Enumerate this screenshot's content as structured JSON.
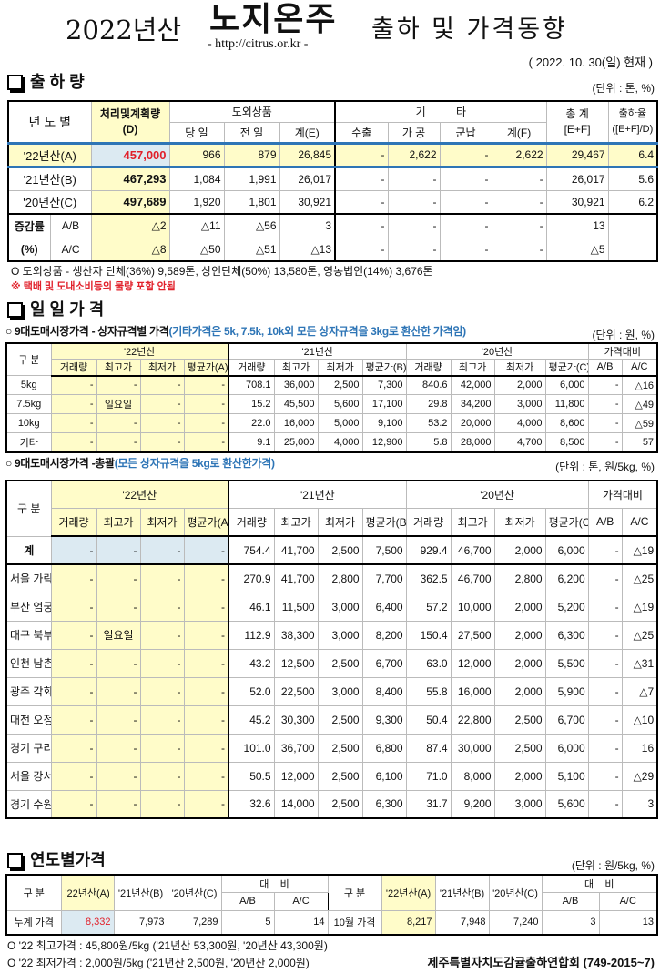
{
  "header": {
    "year": "2022년산",
    "brand": "노지온주",
    "url": "- http://citrus.or.kr -",
    "subtitle": "출하 및 가격동향",
    "date": "( 2022. 10. 30(일) 현재 )"
  },
  "colors": {
    "highlight_yellow": "#fffcc9",
    "highlight_blue": "#dceaf2",
    "red": "#e1202a",
    "divider_blue": "#2e75b6"
  },
  "shipment": {
    "title": "출 하 량",
    "unit": "(단위 : 톤, %)",
    "headers": {
      "year": "년 도 별",
      "plan": "처리및계획량",
      "plan_sub": "(D)",
      "outside": "도외상품",
      "today": "당 일",
      "prev": "전 일",
      "sum_e": "계(E)",
      "other": "기          타",
      "export": "수출",
      "process": "가 공",
      "military": "군납",
      "sum_f": "계(F)",
      "total": "총  계",
      "total_sub": "[E+F]",
      "rate": "출하율",
      "rate_sub": "([E+F]/D)"
    },
    "rows": [
      {
        "label": "'22년산(A)",
        "values": [
          "457,000",
          "966",
          "879",
          "26,845",
          "-",
          "2,622",
          "-",
          "2,622",
          "29,467",
          "6.4"
        ]
      },
      {
        "label": "'21년산(B)",
        "values": [
          "467,293",
          "1,084",
          "1,991",
          "26,017",
          "-",
          "-",
          "-",
          "-",
          "26,017",
          "5.6"
        ]
      },
      {
        "label": "'20년산(C)",
        "values": [
          "497,689",
          "1,920",
          "1,801",
          "30,921",
          "-",
          "-",
          "-",
          "-",
          "30,921",
          "6.2"
        ]
      }
    ],
    "change_label": "증감률",
    "change_pct": "(%)",
    "change_rows": [
      {
        "label": "A/B",
        "values": [
          "△2",
          "△11",
          "△56",
          "3",
          "-",
          "-",
          "-",
          "-",
          "13",
          ""
        ]
      },
      {
        "label": "A/C",
        "values": [
          "△8",
          "△50",
          "△51",
          "△13",
          "-",
          "-",
          "-",
          "-",
          "△5",
          ""
        ]
      }
    ],
    "note1": "O 도외상품 - 생산자 단체(36%) 9,589톤,  상인단체(50%) 13,580톤,  영농법인(14%) 3,676톤",
    "note2": "※ 택배 및 도내소비등의 물량 포함 안됨"
  },
  "daily": {
    "title": "일 일 가 격",
    "sub1": "○ 9대도매시장가격 - 상자규격별 가격",
    "sub1_note": "(기타가격은 5k, 7.5k, 10k외 모든 상자규격을 3kg로 환산한 가격임)",
    "unit1": "(단위 : 원, %)",
    "sub2": "○ 9대도매시장가격 -총괄",
    "sub2_note": "(모든 상자규격을 5kg로 환산한가격)",
    "unit2": "(단위 : 톤, 원/5kg, %)",
    "headers": {
      "gubun": "구  분",
      "y22": "'22년산",
      "y21": "'21년산",
      "y20": "'20년산",
      "compare": "가격대비",
      "vol": "거래량",
      "max": "최고가",
      "min": "최저가",
      "avg_a": "평균가(A)",
      "avg_b": "평균가(B)",
      "avg_c": "평균가(C)",
      "ab": "A/B",
      "ac": "A/C"
    },
    "size_rows": [
      {
        "label": "5kg",
        "values": [
          "-",
          "-",
          "-",
          "-",
          "708.1",
          "36,000",
          "2,500",
          "7,300",
          "840.6",
          "42,000",
          "2,000",
          "6,000",
          "-",
          "△16"
        ]
      },
      {
        "label": "7.5kg",
        "values": [
          "-",
          "일요일",
          "-",
          "-",
          "15.2",
          "45,500",
          "5,600",
          "17,100",
          "29.8",
          "34,200",
          "3,000",
          "11,800",
          "-",
          "△49"
        ]
      },
      {
        "label": "10kg",
        "values": [
          "-",
          "-",
          "-",
          "-",
          "22.0",
          "16,000",
          "5,000",
          "9,100",
          "53.2",
          "20,000",
          "4,000",
          "8,600",
          "-",
          "△59"
        ]
      },
      {
        "label": "기타",
        "values": [
          "-",
          "-",
          "-",
          "-",
          "9.1",
          "25,000",
          "4,000",
          "12,900",
          "5.8",
          "28,000",
          "4,700",
          "8,500",
          "-",
          "57"
        ]
      }
    ],
    "market_rows": [
      {
        "label": "계",
        "values": [
          "-",
          "-",
          "-",
          "-",
          "754.4",
          "41,700",
          "2,500",
          "7,500",
          "929.4",
          "46,700",
          "2,000",
          "6,000",
          "-",
          "△19"
        ]
      },
      {
        "label": "서울 가락",
        "values": [
          "-",
          "-",
          "-",
          "-",
          "270.9",
          "41,700",
          "2,800",
          "7,700",
          "362.5",
          "46,700",
          "2,800",
          "6,200",
          "-",
          "△25"
        ]
      },
      {
        "label": "부산 엄궁",
        "values": [
          "-",
          "-",
          "-",
          "-",
          "46.1",
          "11,500",
          "3,000",
          "6,400",
          "57.2",
          "10,000",
          "2,000",
          "5,200",
          "-",
          "△19"
        ]
      },
      {
        "label": "대구 북부",
        "values": [
          "-",
          "일요일",
          "-",
          "-",
          "112.9",
          "38,300",
          "3,000",
          "8,200",
          "150.4",
          "27,500",
          "2,000",
          "6,300",
          "-",
          "△25"
        ]
      },
      {
        "label": "인천 남촌",
        "values": [
          "-",
          "-",
          "-",
          "-",
          "43.2",
          "12,500",
          "2,500",
          "6,700",
          "63.0",
          "12,000",
          "2,000",
          "5,500",
          "-",
          "△31"
        ]
      },
      {
        "label": "광주 각화",
        "values": [
          "-",
          "-",
          "-",
          "-",
          "52.0",
          "22,500",
          "3,000",
          "8,400",
          "55.8",
          "16,000",
          "2,000",
          "5,900",
          "-",
          "△7"
        ]
      },
      {
        "label": "대전 오정",
        "values": [
          "-",
          "-",
          "-",
          "-",
          "45.2",
          "30,300",
          "2,500",
          "9,300",
          "50.4",
          "22,800",
          "2,500",
          "6,700",
          "-",
          "△10"
        ]
      },
      {
        "label": "경기 구리",
        "values": [
          "-",
          "-",
          "-",
          "-",
          "101.0",
          "36,700",
          "2,500",
          "6,800",
          "87.4",
          "30,000",
          "2,500",
          "6,000",
          "-",
          "16"
        ]
      },
      {
        "label": "서울 강서",
        "values": [
          "-",
          "-",
          "-",
          "-",
          "50.5",
          "12,000",
          "2,500",
          "6,100",
          "71.0",
          "8,000",
          "2,000",
          "5,100",
          "-",
          "△29"
        ]
      },
      {
        "label": "경기 수원",
        "values": [
          "-",
          "-",
          "-",
          "-",
          "32.6",
          "14,000",
          "2,500",
          "6,300",
          "31.7",
          "9,200",
          "3,000",
          "5,600",
          "-",
          "3"
        ]
      }
    ]
  },
  "yearly": {
    "title": "연도별가격",
    "unit": "(단위 : 원/5kg, %)",
    "headers": {
      "gubun": "구    분",
      "a": "'22년산(A)",
      "b": "'21년산(B)",
      "c": "'20년산(C)",
      "compare": "대    비",
      "ab": "A/B",
      "ac": "A/C"
    },
    "cumulative": {
      "label": "누계 가격",
      "values": [
        "8,332",
        "7,973",
        "7,289",
        "5",
        "14"
      ]
    },
    "october": {
      "label": "10월 가격",
      "values": [
        "8,217",
        "7,948",
        "7,240",
        "3",
        "13"
      ]
    },
    "note1": "O '22 최고가격 : 45,800원/5kg ('21년산 53,300원, '20년산 43,300원)",
    "note2": "O '22 최저가격 :  2,000원/5kg ('21년산  2,500원, '20년산  2,000원)",
    "footer": "제주특별자치도감귤출하연합회 (749-2015~7)"
  }
}
